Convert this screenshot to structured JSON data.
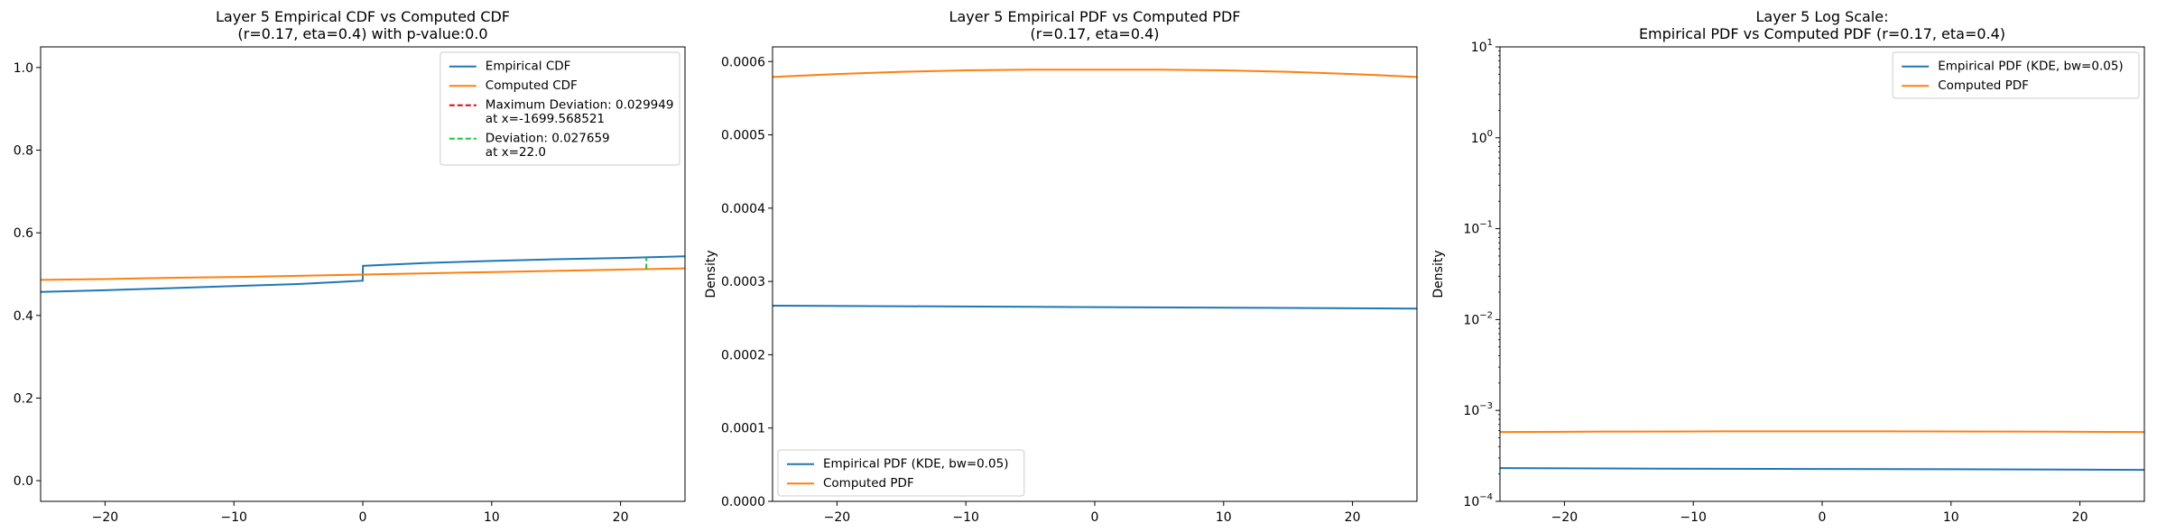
{
  "chart_data": [
    {
      "type": "line",
      "title": "Layer 5 Empirical CDF vs Computed CDF\n(r=0.17, eta=0.4) with p-value:0.0",
      "xlabel": "",
      "ylabel": "",
      "xlim": [
        -25,
        25
      ],
      "ylim": [
        -0.05,
        1.05
      ],
      "xticks": [
        -20,
        -10,
        0,
        10,
        20
      ],
      "xtick_labels": [
        "−20",
        "−10",
        "0",
        "10",
        "20"
      ],
      "yticks": [
        0.0,
        0.2,
        0.4,
        0.6,
        0.8,
        1.0
      ],
      "ytick_labels": [
        "0.0",
        "0.2",
        "0.4",
        "0.6",
        "0.8",
        "1.0"
      ],
      "legend_position": "upper right",
      "grid": false,
      "series": [
        {
          "name": "Empirical CDF",
          "color": "#1f77b4",
          "x": [
            -25,
            -20,
            -15,
            -10,
            -5,
            -0.01,
            0.01,
            2,
            5,
            10,
            15,
            20,
            25
          ],
          "y": [
            0.457,
            0.461,
            0.466,
            0.471,
            0.476,
            0.484,
            0.52,
            0.523,
            0.527,
            0.532,
            0.536,
            0.539,
            0.543
          ]
        },
        {
          "name": "Computed CDF",
          "color": "#ff7f0e",
          "x": [
            -25,
            -20,
            -15,
            -10,
            -5,
            0,
            5,
            10,
            15,
            20,
            25
          ],
          "y": [
            0.486,
            0.488,
            0.491,
            0.493,
            0.496,
            0.499,
            0.502,
            0.505,
            0.508,
            0.511,
            0.514
          ]
        }
      ],
      "legend_extra": [
        {
          "name": "Maximum Deviation: 0.029949\nat x=-1699.568521",
          "color": "#e8000b",
          "style": "dashed"
        },
        {
          "name": "Deviation: 0.027659\nat x=22.0",
          "color": "#1ac938",
          "style": "dashed"
        }
      ],
      "deviation_segment": {
        "x": 22.0,
        "y_from": 0.512,
        "y_to": 0.54,
        "color": "#1ac938"
      }
    },
    {
      "type": "line",
      "title": "Layer 5 Empirical PDF vs Computed PDF\n(r=0.17, eta=0.4)",
      "xlabel": "",
      "ylabel": "Density",
      "xlim": [
        -25,
        25
      ],
      "ylim": [
        0,
        0.00062
      ],
      "xticks": [
        -20,
        -10,
        0,
        10,
        20
      ],
      "xtick_labels": [
        "−20",
        "−10",
        "0",
        "10",
        "20"
      ],
      "yticks": [
        0,
        0.0001,
        0.0002,
        0.0003,
        0.0004,
        0.0005,
        0.0006
      ],
      "ytick_labels": [
        "0.0000",
        "0.0001",
        "0.0002",
        "0.0003",
        "0.0004",
        "0.0005",
        "0.0006"
      ],
      "legend_position": "lower left",
      "grid": false,
      "series": [
        {
          "name": "Empirical PDF (KDE, bw=0.05)",
          "color": "#1f77b4",
          "x": [
            -25,
            -12.5,
            0,
            12.5,
            25
          ],
          "y": [
            0.000267,
            0.000266,
            0.000265,
            0.000264,
            0.000263
          ]
        },
        {
          "name": "Computed PDF",
          "color": "#ff7f0e",
          "x": [
            -25,
            -20,
            -15,
            -10,
            -5,
            0,
            5,
            10,
            15,
            20,
            25
          ],
          "y": [
            0.000579,
            0.000583,
            0.000586,
            0.000588,
            0.000589,
            0.000589,
            0.000589,
            0.000588,
            0.000586,
            0.000583,
            0.000579
          ]
        }
      ]
    },
    {
      "type": "line",
      "title": "Layer 5 Log Scale:\nEmpirical PDF vs Computed PDF (r=0.17, eta=0.4)",
      "xlabel": "",
      "ylabel": "Density",
      "yscale": "log",
      "xlim": [
        -25,
        25
      ],
      "ylim": [
        0.0001,
        10
      ],
      "xticks": [
        -20,
        -10,
        0,
        10,
        20
      ],
      "xtick_labels": [
        "−20",
        "−10",
        "0",
        "10",
        "20"
      ],
      "yticks": [
        0.0001,
        0.001,
        0.01,
        0.1,
        1,
        10
      ],
      "ytick_labels": [
        {
          "base": "10",
          "exp": "−4"
        },
        {
          "base": "10",
          "exp": "−3"
        },
        {
          "base": "10",
          "exp": "−2"
        },
        {
          "base": "10",
          "exp": "−1"
        },
        {
          "base": "10",
          "exp": "0"
        },
        {
          "base": "10",
          "exp": "1"
        }
      ],
      "legend_position": "upper right",
      "grid": false,
      "series": [
        {
          "name": "Empirical PDF (KDE, bw=0.05)",
          "color": "#1f77b4",
          "x": [
            -25,
            -12.5,
            0,
            12.5,
            25
          ],
          "y": [
            0.000232,
            0.000229,
            0.000227,
            0.000225,
            0.000222
          ]
        },
        {
          "name": "Computed PDF",
          "color": "#ff7f0e",
          "x": [
            -25,
            -20,
            -15,
            -10,
            -5,
            0,
            5,
            10,
            15,
            20,
            25
          ],
          "y": [
            0.000579,
            0.000583,
            0.000586,
            0.000588,
            0.000589,
            0.000589,
            0.000589,
            0.000588,
            0.000586,
            0.000583,
            0.000579
          ]
        }
      ]
    }
  ]
}
